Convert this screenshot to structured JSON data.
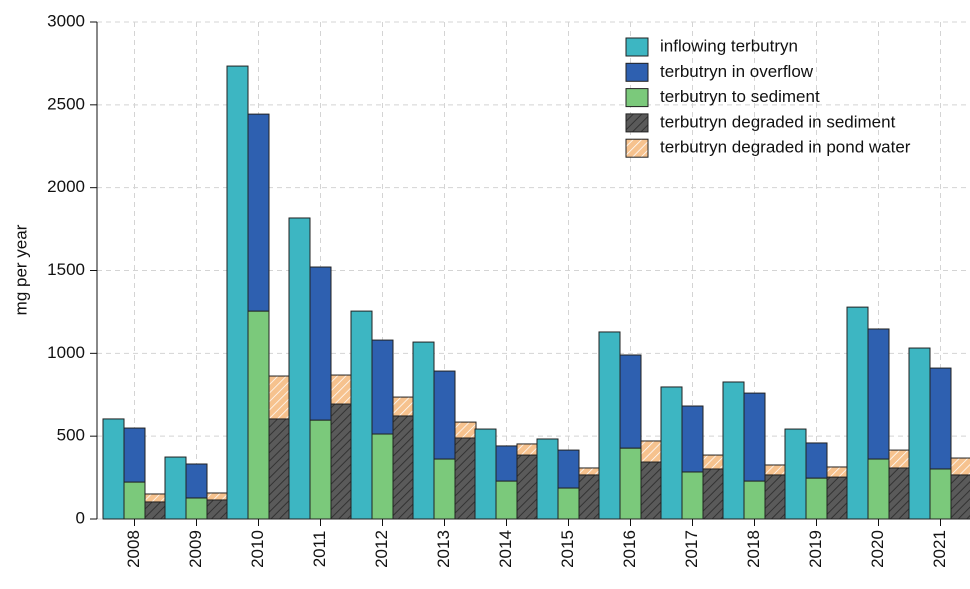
{
  "chart_data": {
    "type": "bar",
    "y_label": "mg per year",
    "categories": [
      "2008",
      "2009",
      "2010",
      "2011",
      "2012",
      "2013",
      "2014",
      "2015",
      "2016",
      "2017",
      "2018",
      "2019",
      "2020",
      "2021"
    ],
    "series": [
      {
        "name": "inflowing terbutryn",
        "color": "#3db6c2",
        "values": [
          604,
          374,
          2734,
          1817,
          1255,
          1068,
          543,
          483,
          1129,
          797,
          827,
          543,
          1279,
          1032
        ]
      },
      {
        "name": "terbutryn in overflow",
        "color": "#2e60b0",
        "values": [
          326,
          205,
          1189,
          924,
          567,
          531,
          212,
          229,
          562,
          398,
          531,
          212,
          785,
          609
        ]
      },
      {
        "name": "terbutryn to sediment",
        "color": "#7bc97b",
        "values": [
          223,
          127,
          1255,
          597,
          513,
          362,
          229,
          187,
          428,
          284,
          229,
          247,
          362,
          302
        ]
      },
      {
        "name": "terbutryn degraded in sediment",
        "color": "#5a5a5a",
        "pattern": "hatch",
        "values": [
          103,
          115,
          604,
          694,
          622,
          489,
          386,
          266,
          344,
          302,
          266,
          253,
          308,
          266
        ]
      },
      {
        "name": "terbutryn degraded in pond water",
        "color": "#f6c28e",
        "pattern": "hatch",
        "values": [
          48,
          42,
          259,
          175,
          114,
          96,
          67,
          42,
          127,
          84,
          60,
          61,
          108,
          102
        ]
      }
    ],
    "ylim": [
      0,
      3000
    ],
    "yticks": [
      0,
      500,
      1000,
      1500,
      2000,
      2500,
      3000
    ],
    "grid": true,
    "legend": "top-right"
  }
}
